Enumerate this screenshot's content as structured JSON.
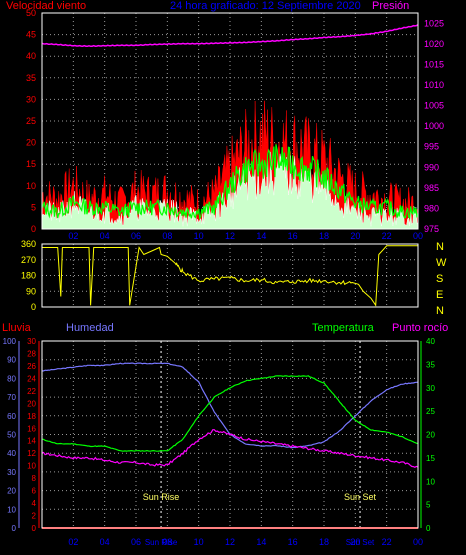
{
  "header": {
    "left_title": "Velocidad viento",
    "center_title": "24 hora graficado: 12 Septiembre 2020",
    "right_title": "Presión"
  },
  "wind_dir_labels": [
    "N",
    "W",
    "S",
    "E",
    "N"
  ],
  "middle_titles": {
    "rain": "Lluvia",
    "humidity": "Humedad",
    "temperature": "Temperatura",
    "dewpoint": "Punto rocío"
  },
  "annotations": {
    "sunrise": "Sun Rise",
    "sunset": "Sun Set"
  },
  "colors": {
    "background": "#000000",
    "frame": "#ffffff",
    "grid": "#9a9a9a",
    "wind_gust": "#ff0000",
    "wind_avg": "#00ff00",
    "wind_speed": "#ffffff",
    "wind_fill": "#ccffcc",
    "pressure": "#ff00ff",
    "direction": "#ffff00",
    "rain": "#ff0000",
    "humidity": "#7777ff",
    "temperature": "#00ff00",
    "dewpoint": "#ff00ff",
    "title_red": "#ff0000",
    "title_blue": "#0000ff",
    "title_magenta": "#ff00ff"
  },
  "chart_data": [
    {
      "type": "line",
      "name": "wind_pressure",
      "x_ticks": [
        "02",
        "04",
        "06",
        "08",
        "10",
        "12",
        "14",
        "16",
        "18",
        "20",
        "22",
        "00"
      ],
      "y_left_ticks": [
        "0",
        "5",
        "10",
        "15",
        "20",
        "25",
        "30",
        "35",
        "40",
        "45",
        "50"
      ],
      "ylim_left": [
        0,
        50
      ],
      "y_right_ticks": [
        "975",
        "980",
        "985",
        "990",
        "995",
        "1000",
        "1005",
        "1010",
        "1015",
        "1020",
        "1025"
      ],
      "ylim_right": [
        975,
        1027.5
      ],
      "x_hours": [
        0,
        1,
        2,
        3,
        4,
        5,
        6,
        7,
        8,
        9,
        10,
        11,
        12,
        13,
        14,
        15,
        16,
        17,
        18,
        19,
        20,
        21,
        22,
        23,
        24
      ],
      "wind_gust": [
        8,
        7,
        10,
        7,
        8,
        6,
        9,
        8,
        9,
        7,
        6,
        8,
        14,
        19,
        22,
        20,
        20,
        18,
        16,
        12,
        9,
        8,
        7,
        6,
        6
      ],
      "wind_avg": [
        5,
        4,
        6,
        5,
        5,
        4,
        5,
        5,
        5,
        4,
        4,
        5,
        10,
        14,
        15,
        16,
        15,
        14,
        12,
        9,
        6,
        5,
        5,
        4,
        4
      ],
      "wind_speed_hi": [
        5,
        3,
        6,
        4,
        4,
        3,
        5,
        4,
        5,
        3,
        3,
        4,
        8,
        11,
        12,
        13,
        12,
        11,
        9,
        6,
        4,
        3,
        3,
        3,
        3
      ],
      "pressure": [
        1020,
        1019.8,
        1019.5,
        1019.4,
        1019.5,
        1019.6,
        1019.6,
        1019.8,
        1019.9,
        1020,
        1020,
        1020.1,
        1020.2,
        1020.3,
        1020.5,
        1020.7,
        1021,
        1021.2,
        1021.5,
        1021.7,
        1022,
        1022.4,
        1023,
        1023.8,
        1024.5
      ]
    },
    {
      "type": "line",
      "name": "wind_direction",
      "y_ticks": [
        "360",
        "270",
        "180",
        "90",
        "0"
      ],
      "ylim": [
        0,
        360
      ],
      "x_hours": [
        0,
        1,
        1.2,
        1.3,
        2,
        3,
        3.1,
        3.3,
        4,
        5,
        5.5,
        5.6,
        6.2,
        6.5,
        7,
        7.5,
        7.6,
        8,
        8.5,
        9,
        10,
        11,
        12,
        13,
        14,
        15,
        16,
        17,
        18,
        19,
        19.8,
        20.2,
        20.5,
        21,
        21.3,
        21.5,
        22,
        24
      ],
      "direction": [
        340,
        340,
        60,
        340,
        340,
        340,
        10,
        340,
        340,
        340,
        340,
        10,
        340,
        300,
        320,
        340,
        300,
        290,
        250,
        200,
        150,
        160,
        165,
        150,
        155,
        140,
        145,
        150,
        150,
        140,
        140,
        130,
        90,
        50,
        10,
        300,
        350,
        350
      ]
    },
    {
      "type": "line",
      "name": "humidity_temperature_rain",
      "x_ticks": [
        "02",
        "04",
        "06",
        "08",
        "10",
        "12",
        "14",
        "16",
        "18",
        "20",
        "22",
        "00"
      ],
      "y_rain_ticks": [
        "0",
        "2",
        "4",
        "6",
        "8",
        "10",
        "12",
        "14",
        "16",
        "18",
        "20",
        "22",
        "24",
        "26",
        "28",
        "30"
      ],
      "ylim_rain": [
        0,
        30
      ],
      "y_humidity_ticks": [
        "0",
        "10",
        "20",
        "30",
        "40",
        "50",
        "60",
        "70",
        "80",
        "90",
        "100"
      ],
      "ylim_humidity": [
        0,
        100
      ],
      "y_temp_ticks": [
        "0",
        "5",
        "10",
        "15",
        "20",
        "25",
        "30",
        "35",
        "40"
      ],
      "ylim_temp": [
        0,
        40
      ],
      "x_hours": [
        0,
        1,
        2,
        3,
        4,
        5,
        6,
        7,
        8,
        9,
        10,
        11,
        12,
        13,
        14,
        15,
        16,
        17,
        18,
        19,
        20,
        21,
        22,
        23,
        24
      ],
      "humidity": [
        84,
        85,
        86,
        87,
        87,
        88,
        88,
        88,
        88,
        86,
        78,
        62,
        50,
        45,
        44,
        44,
        43,
        44,
        46,
        52,
        60,
        68,
        74,
        77,
        78
      ],
      "temperature": [
        19,
        18,
        18,
        17.5,
        17.5,
        16.5,
        16.5,
        16.5,
        16.5,
        19,
        24,
        28,
        30,
        31.5,
        32,
        32.5,
        32.5,
        32.5,
        31,
        27,
        23,
        21,
        20.5,
        19.5,
        18
      ],
      "dewpoint": [
        16,
        15.5,
        15,
        15,
        14.5,
        14,
        14,
        13.5,
        13.5,
        16,
        19,
        21,
        20,
        19,
        18.5,
        18,
        17.5,
        17,
        16.5,
        16,
        15.5,
        15,
        14.5,
        14,
        13
      ],
      "rain": [
        0,
        0,
        0,
        0,
        0,
        0,
        0,
        0,
        0,
        0,
        0,
        0,
        0,
        0,
        0,
        0,
        0,
        0,
        0,
        0,
        0,
        0,
        0,
        0,
        0
      ],
      "sunrise_hour": 7.6,
      "sunset_hour": 20.3,
      "sunrise_tick": "Sun Rise",
      "sunset_tick": "Sun Set"
    }
  ]
}
